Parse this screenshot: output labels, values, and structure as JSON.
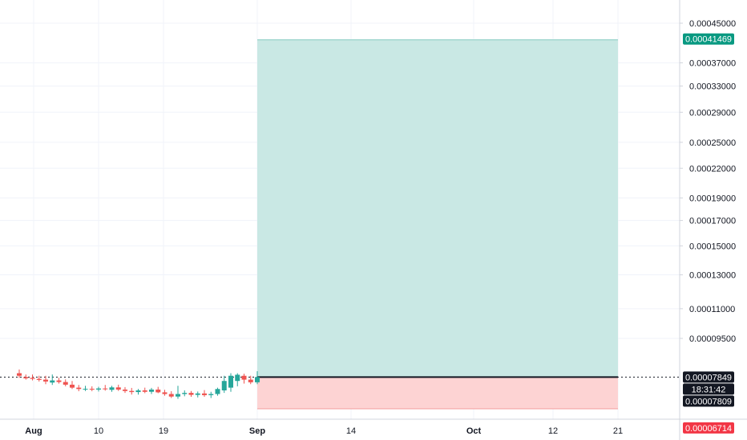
{
  "chart_data": {
    "type": "candlestick",
    "grid": true,
    "price_axis": {
      "position": "right",
      "scale": "log",
      "ticks": [
        "0.00045000",
        "0.00037000",
        "0.00033000",
        "0.00029000",
        "0.00025000",
        "0.00022000",
        "0.00019000",
        "0.00017000",
        "0.00015000",
        "0.00013000",
        "0.00011000",
        "0.00009500"
      ]
    },
    "time_axis": {
      "ticks": [
        "Aug",
        "10",
        "19",
        "Sep",
        "14",
        "Oct",
        "12",
        "21"
      ]
    },
    "candles": [
      {
        "o": 8e-05,
        "h": 8.15e-05,
        "l": 7.82e-05,
        "c": 7.9e-05
      },
      {
        "o": 7.85e-05,
        "h": 7.95e-05,
        "l": 7.75e-05,
        "c": 7.8e-05
      },
      {
        "o": 7.82e-05,
        "h": 7.95e-05,
        "l": 7.72e-05,
        "c": 7.78e-05
      },
      {
        "o": 7.78e-05,
        "h": 7.9e-05,
        "l": 7.68e-05,
        "c": 7.74e-05
      },
      {
        "o": 7.75e-05,
        "h": 7.9e-05,
        "l": 7.58e-05,
        "c": 7.68e-05
      },
      {
        "o": 7.64e-05,
        "h": 7.95e-05,
        "l": 7.55e-05,
        "c": 7.72e-05
      },
      {
        "o": 7.72e-05,
        "h": 7.82e-05,
        "l": 7.6e-05,
        "c": 7.66e-05
      },
      {
        "o": 7.66e-05,
        "h": 7.76e-05,
        "l": 7.5e-05,
        "c": 7.56e-05
      },
      {
        "o": 7.56e-05,
        "h": 7.7e-05,
        "l": 7.4e-05,
        "c": 7.45e-05
      },
      {
        "o": 7.45e-05,
        "h": 7.55e-05,
        "l": 7.32e-05,
        "c": 7.4e-05
      },
      {
        "o": 7.4e-05,
        "h": 7.52e-05,
        "l": 7.33e-05,
        "c": 7.41e-05
      },
      {
        "o": 7.41e-05,
        "h": 7.5e-05,
        "l": 7.32e-05,
        "c": 7.38e-05
      },
      {
        "o": 7.38e-05,
        "h": 7.48e-05,
        "l": 7.31e-05,
        "c": 7.42e-05
      },
      {
        "o": 7.42e-05,
        "h": 7.55e-05,
        "l": 7.34e-05,
        "c": 7.39e-05
      },
      {
        "o": 7.37e-05,
        "h": 7.52e-05,
        "l": 7.3e-05,
        "c": 7.46e-05
      },
      {
        "o": 7.46e-05,
        "h": 7.56e-05,
        "l": 7.33e-05,
        "c": 7.38e-05
      },
      {
        "o": 7.38e-05,
        "h": 7.47e-05,
        "l": 7.26e-05,
        "c": 7.33e-05
      },
      {
        "o": 7.33e-05,
        "h": 7.44e-05,
        "l": 7.2e-05,
        "c": 7.29e-05
      },
      {
        "o": 7.29e-05,
        "h": 7.4e-05,
        "l": 7.2e-05,
        "c": 7.35e-05
      },
      {
        "o": 7.35e-05,
        "h": 7.45e-05,
        "l": 7.25e-05,
        "c": 7.3e-05
      },
      {
        "o": 7.3e-05,
        "h": 7.44e-05,
        "l": 7.22e-05,
        "c": 7.38e-05
      },
      {
        "o": 7.38e-05,
        "h": 7.48e-05,
        "l": 7.25e-05,
        "c": 7.28e-05
      },
      {
        "o": 7.28e-05,
        "h": 7.37e-05,
        "l": 7.16e-05,
        "c": 7.22e-05
      },
      {
        "o": 7.22e-05,
        "h": 7.32e-05,
        "l": 7.08e-05,
        "c": 7.13e-05
      },
      {
        "o": 7.13e-05,
        "h": 7.52e-05,
        "l": 7.05e-05,
        "c": 7.22e-05
      },
      {
        "o": 7.22e-05,
        "h": 7.35e-05,
        "l": 7.14e-05,
        "c": 7.26e-05
      },
      {
        "o": 7.26e-05,
        "h": 7.33e-05,
        "l": 7.12e-05,
        "c": 7.19e-05
      },
      {
        "o": 7.19e-05,
        "h": 7.31e-05,
        "l": 7.1e-05,
        "c": 7.24e-05
      },
      {
        "o": 7.24e-05,
        "h": 7.36e-05,
        "l": 7.12e-05,
        "c": 7.18e-05
      },
      {
        "o": 7.18e-05,
        "h": 7.3e-05,
        "l": 7.08e-05,
        "c": 7.22e-05
      },
      {
        "o": 7.22e-05,
        "h": 7.45e-05,
        "l": 7.16e-05,
        "c": 7.4e-05
      },
      {
        "o": 7.35e-05,
        "h": 7.9e-05,
        "l": 7.26e-05,
        "c": 7.7e-05
      },
      {
        "o": 7.45e-05,
        "h": 8e-05,
        "l": 7.3e-05,
        "c": 7.9e-05
      },
      {
        "o": 7.7e-05,
        "h": 8e-05,
        "l": 7.5e-05,
        "c": 7.94e-05
      },
      {
        "o": 7.9e-05,
        "h": 7.98e-05,
        "l": 7.6e-05,
        "c": 7.75e-05
      },
      {
        "o": 7.75e-05,
        "h": 7.9e-05,
        "l": 7.58e-05,
        "c": 7.65e-05
      },
      {
        "o": 7.65e-05,
        "h": 8.08e-05,
        "l": 7.58e-05,
        "c": 7.85e-05
      }
    ],
    "position": {
      "type": "long",
      "entry": 7.849e-05,
      "target": 0.00041469,
      "stop": 6.714e-05
    },
    "price_tags": [
      {
        "text": "0.00041469",
        "value": 0.00041469,
        "color": "#089981"
      },
      {
        "text": "0.00007849",
        "value": 7.849e-05,
        "color": "#131722"
      },
      {
        "text": "18:31:42",
        "value": 7.849e-05,
        "color": "#131722"
      },
      {
        "text": "0.00007809",
        "value": 7.809e-05,
        "color": "#131722"
      },
      {
        "text": "0.00006714",
        "value": 6.714e-05,
        "color": "#f23645"
      }
    ],
    "colors": {
      "up": "#26a69a",
      "down": "#ef5350",
      "profit_zone": "#c9e8e4",
      "loss_zone": "#fdd3d3",
      "grid": "#f0f3fa"
    }
  }
}
